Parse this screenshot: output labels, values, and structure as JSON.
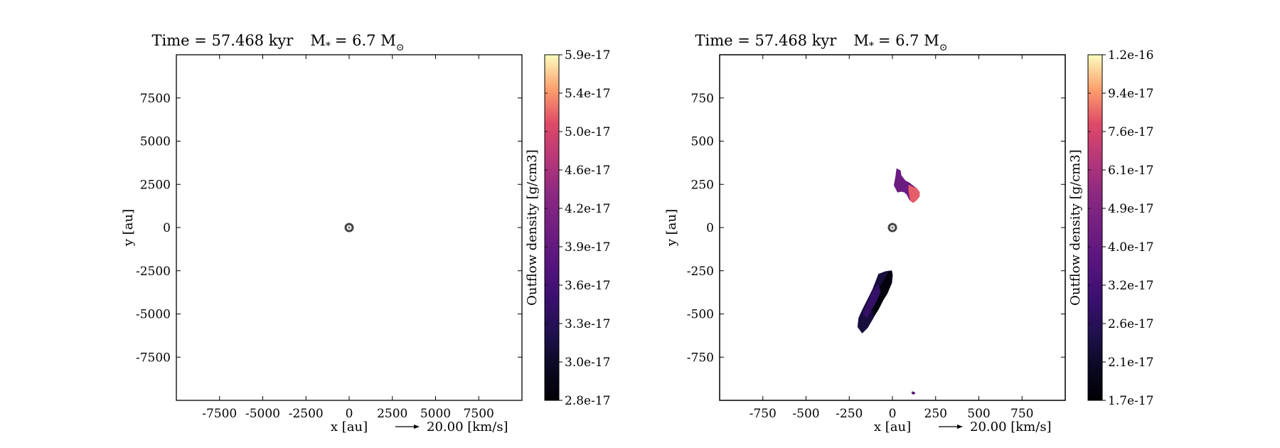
{
  "chart_data": [
    {
      "type": "heatmap",
      "title": "Time = 57.468 kyr    M$_*$ = 6.7 M$_\\odot$",
      "title_parts": {
        "time": "Time = 57.468 kyr",
        "mass_symbol": "M",
        "mass_sub": "*",
        "mass_value": "= 6.7 M",
        "mass_unit_sub": "⊙"
      },
      "xlabel": "x [au]",
      "ylabel": "y [au]",
      "xlim": [
        -10000,
        10000
      ],
      "ylim": [
        -10000,
        10000
      ],
      "xticks": [
        -7500,
        -5000,
        -2500,
        0,
        2500,
        5000,
        7500
      ],
      "xtick_labels": [
        "-7500",
        "-5000",
        "-2500",
        "0",
        "2500",
        "5000",
        "7500"
      ],
      "yticks": [
        7500,
        5000,
        2500,
        0,
        -2500,
        -5000,
        -7500
      ],
      "ytick_labels": [
        "7500",
        "5000",
        "2500",
        "0",
        "-2500",
        "-5000",
        "-7500"
      ],
      "colorbar": {
        "label": "Outflow density [g/cm3]",
        "min": 2.8e-17,
        "max": 5.9e-17,
        "tick_labels": [
          "2.8e-17",
          "3.0e-17",
          "3.3e-17",
          "3.6e-17",
          "3.9e-17",
          "4.2e-17",
          "4.6e-17",
          "5.0e-17",
          "5.4e-17",
          "5.9e-17"
        ]
      },
      "quiver_key": {
        "label": "20.00 [km/s]"
      },
      "sink": {
        "x": 0,
        "y": 0
      },
      "regions": []
    },
    {
      "type": "heatmap",
      "title": "Time = 57.468 kyr    M$_*$ = 6.7 M$_\\odot$",
      "title_parts": {
        "time": "Time = 57.468 kyr",
        "mass_symbol": "M",
        "mass_sub": "*",
        "mass_value": "= 6.7 M",
        "mass_unit_sub": "⊙"
      },
      "xlabel": "x [au]",
      "ylabel": "y [au]",
      "xlim": [
        -1000,
        1000
      ],
      "ylim": [
        -1000,
        1000
      ],
      "xticks": [
        -750,
        -500,
        -250,
        0,
        250,
        500,
        750
      ],
      "xtick_labels": [
        "-750",
        "-500",
        "-250",
        "0",
        "250",
        "500",
        "750"
      ],
      "yticks": [
        750,
        500,
        250,
        0,
        -250,
        -500,
        -750
      ],
      "ytick_labels": [
        "750",
        "500",
        "250",
        "0",
        "-250",
        "-500",
        "-750"
      ],
      "colorbar": {
        "label": "Outflow density [g/cm3]",
        "min": 1.7e-17,
        "max": 1.2e-16,
        "tick_labels": [
          "1.7e-17",
          "2.1e-17",
          "2.6e-17",
          "3.2e-17",
          "4.0e-17",
          "4.9e-17",
          "6.1e-17",
          "7.6e-17",
          "9.4e-17",
          "1.2e-16"
        ]
      },
      "quiver_key": {
        "label": "20.00 [km/s]"
      },
      "sink": {
        "x": 0,
        "y": 0
      },
      "regions": [
        {
          "name": "upper-lobe",
          "density": 4.3e-17,
          "points": [
            [
              25,
              340
            ],
            [
              45,
              330
            ],
            [
              50,
              300
            ],
            [
              75,
              270
            ],
            [
              95,
              260
            ],
            [
              120,
              240
            ],
            [
              140,
              225
            ],
            [
              155,
              205
            ],
            [
              155,
              180
            ],
            [
              140,
              165
            ],
            [
              120,
              145
            ],
            [
              100,
              160
            ],
            [
              85,
              190
            ],
            [
              70,
              205
            ],
            [
              50,
              210
            ],
            [
              30,
              205
            ],
            [
              20,
              225
            ],
            [
              10,
              245
            ],
            [
              15,
              270
            ],
            [
              20,
              300
            ]
          ]
        },
        {
          "name": "upper-lobe-tip",
          "density": 8.5e-17,
          "points": [
            [
              95,
              245
            ],
            [
              115,
              235
            ],
            [
              140,
              225
            ],
            [
              155,
              205
            ],
            [
              155,
              180
            ],
            [
              140,
              160
            ],
            [
              120,
              145
            ],
            [
              105,
              155
            ],
            [
              100,
              180
            ],
            [
              95,
              210
            ]
          ]
        },
        {
          "name": "lower-lobe",
          "density": 2.3e-17,
          "points": [
            [
              -80,
              -270
            ],
            [
              -40,
              -255
            ],
            [
              -5,
              -250
            ],
            [
              0,
              -275
            ],
            [
              -5,
              -320
            ],
            [
              -35,
              -370
            ],
            [
              -75,
              -440
            ],
            [
              -110,
              -520
            ],
            [
              -145,
              -580
            ],
            [
              -175,
              -610
            ],
            [
              -200,
              -575
            ],
            [
              -195,
              -525
            ],
            [
              -175,
              -480
            ],
            [
              -145,
              -420
            ],
            [
              -115,
              -360
            ],
            [
              -95,
              -310
            ]
          ]
        },
        {
          "name": "lower-lobe-core",
          "density": 1.8e-17,
          "points": [
            [
              -20,
              -255
            ],
            [
              -5,
              -255
            ],
            [
              -5,
              -320
            ],
            [
              -30,
              -380
            ],
            [
              -55,
              -420
            ],
            [
              -80,
              -470
            ],
            [
              -105,
              -510
            ],
            [
              -125,
              -460
            ],
            [
              -100,
              -400
            ],
            [
              -70,
              -340
            ],
            [
              -40,
              -290
            ]
          ]
        },
        {
          "name": "lower-lobe-mid",
          "density": 2.9e-17,
          "points": [
            [
              -110,
              -360
            ],
            [
              -85,
              -330
            ],
            [
              -70,
              -370
            ],
            [
              -95,
              -430
            ],
            [
              -120,
              -470
            ],
            [
              -150,
              -520
            ],
            [
              -170,
              -500
            ],
            [
              -145,
              -440
            ]
          ]
        },
        {
          "name": "stray-cell",
          "density": 4e-17,
          "points": [
            [
              115,
              -950
            ],
            [
              130,
              -955
            ],
            [
              125,
              -965
            ],
            [
              112,
              -960
            ]
          ]
        }
      ]
    }
  ]
}
